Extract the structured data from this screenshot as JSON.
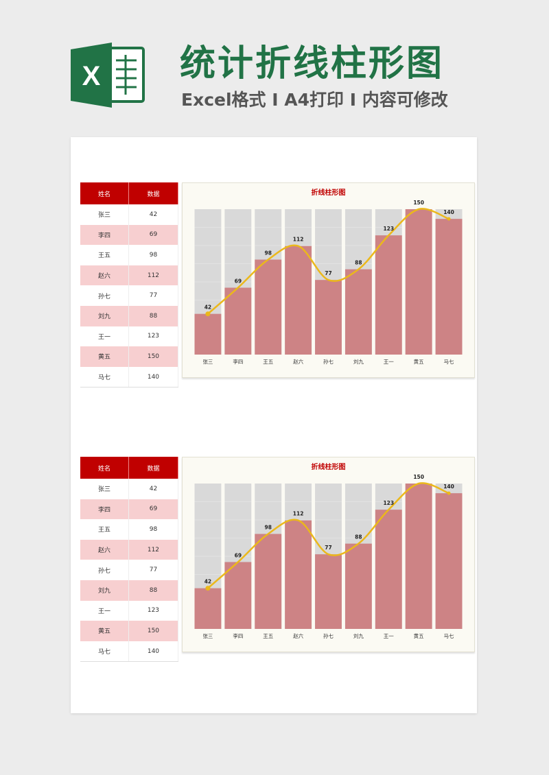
{
  "header": {
    "title": "统计折线柱形图",
    "subtitle": "Excel格式 I A4打印 I 内容可修改",
    "logo_letter": "X"
  },
  "table": {
    "head": [
      "姓名",
      "数据"
    ],
    "rows": [
      [
        "张三",
        "42"
      ],
      [
        "李四",
        "69"
      ],
      [
        "王五",
        "98"
      ],
      [
        "赵六",
        "112"
      ],
      [
        "孙七",
        "77"
      ],
      [
        "刘九",
        "88"
      ],
      [
        "王一",
        "123"
      ],
      [
        "黄五",
        "150"
      ],
      [
        "马七",
        "140"
      ]
    ]
  },
  "colors": {
    "accent": "#217346",
    "header_red": "#c00000",
    "bar": "#cd8385",
    "bar_bg": "#d9d9d9",
    "line": "#ebb81b",
    "row_alt": "#f7cfd0"
  },
  "chart_data": [
    {
      "type": "bar+line",
      "title": "折线柱形图",
      "categories": [
        "张三",
        "李四",
        "王五",
        "赵六",
        "孙七",
        "刘九",
        "王一",
        "黄五",
        "马七"
      ],
      "values": [
        42,
        69,
        98,
        112,
        77,
        88,
        123,
        150,
        140
      ],
      "ylim": [
        0,
        150
      ],
      "line_style": "smooth",
      "data_labels": true
    },
    {
      "type": "bar+line",
      "title": "折线柱形图",
      "categories": [
        "张三",
        "李四",
        "王五",
        "赵六",
        "孙七",
        "刘九",
        "王一",
        "黄五",
        "马七"
      ],
      "values": [
        42,
        69,
        98,
        112,
        77,
        88,
        123,
        150,
        140
      ],
      "ylim": [
        0,
        150
      ],
      "line_style": "smooth",
      "data_labels": true
    }
  ]
}
